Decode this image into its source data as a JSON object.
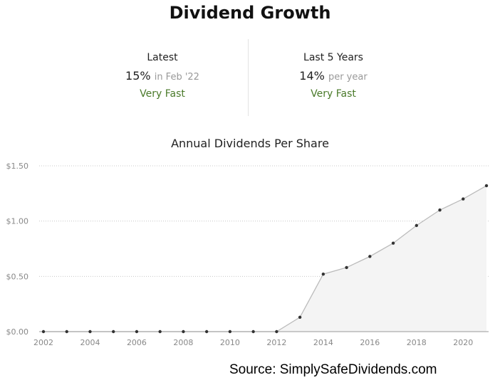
{
  "header": {
    "title": "Dividend Growth"
  },
  "stats": [
    {
      "label": "Latest",
      "value": "15%",
      "suffix": "in Feb '22",
      "rating": "Very Fast"
    },
    {
      "label": "Last 5 Years",
      "value": "14%",
      "suffix": "per year",
      "rating": "Very Fast"
    }
  ],
  "source": "Source: SimplySafeDividends.com",
  "colors": {
    "rating": "#4a7a2a",
    "line": "#bbbbbb",
    "area": "#f4f4f4",
    "point": "#333333"
  },
  "chart_data": {
    "type": "area",
    "title": "Annual Dividends Per Share",
    "xlabel": "",
    "ylabel": "",
    "x": [
      2002,
      2003,
      2004,
      2005,
      2006,
      2007,
      2008,
      2009,
      2010,
      2011,
      2012,
      2013,
      2014,
      2015,
      2016,
      2017,
      2018,
      2019,
      2020,
      2021
    ],
    "values": [
      0,
      0,
      0,
      0,
      0,
      0,
      0,
      0,
      0,
      0,
      0,
      0.13,
      0.52,
      0.58,
      0.68,
      0.8,
      0.96,
      1.1,
      1.2,
      1.32
    ],
    "xticks": [
      "2002",
      "2004",
      "2006",
      "2008",
      "2010",
      "2012",
      "2014",
      "2016",
      "2018",
      "2020"
    ],
    "yticks": [
      "$0.00",
      "$0.50",
      "$1.00",
      "$1.50"
    ],
    "ylim": [
      0,
      1.5
    ],
    "grid": true
  }
}
